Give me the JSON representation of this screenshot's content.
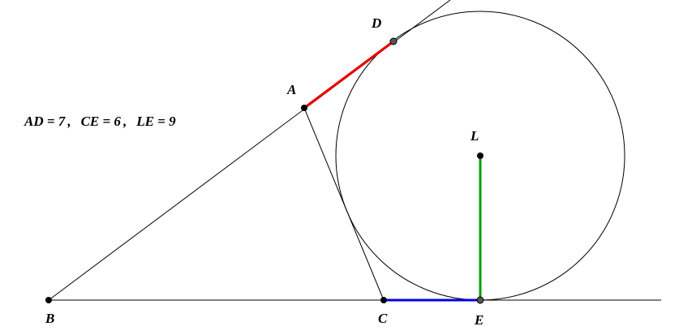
{
  "points": {
    "A": "A",
    "B": "B",
    "C": "C",
    "D": "D",
    "E": "E",
    "L": "L"
  },
  "annotation": {
    "AD": "AD = 7",
    "CE": "CE = 6",
    "LE": "LE = 9",
    "separator": ","
  }
}
